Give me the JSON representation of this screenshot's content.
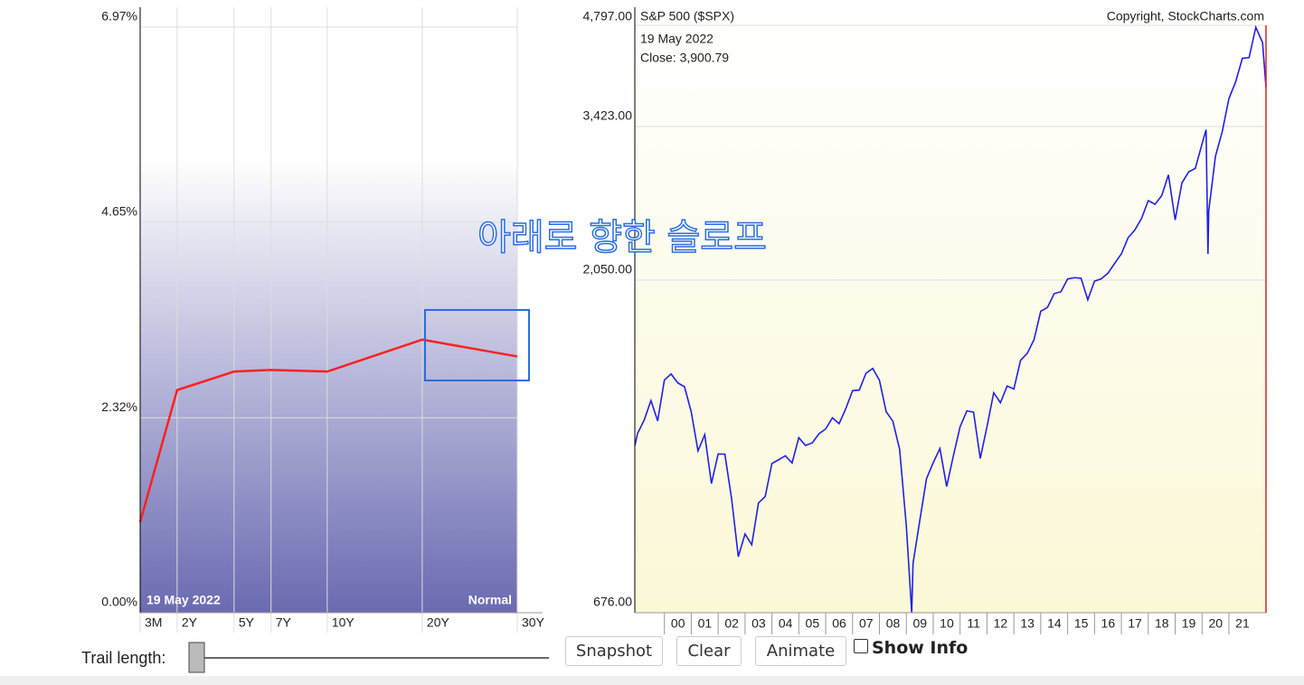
{
  "chart_data": [
    {
      "type": "line",
      "categories": [
        "3M",
        "2Y",
        "5Y",
        "7Y",
        "10Y",
        "20Y",
        "30Y"
      ],
      "values": [
        1.08,
        2.65,
        2.87,
        2.89,
        2.87,
        3.25,
        3.05
      ],
      "color": "#ff2020",
      "ylim": [
        0,
        6.97
      ],
      "yticks": [
        {
          "value": 0,
          "label": "0.00%"
        },
        {
          "value": 2.32,
          "label": "2.32%"
        },
        {
          "value": 4.65,
          "label": "4.65%"
        },
        {
          "value": 6.97,
          "label": "6.97%"
        }
      ],
      "grid": true,
      "date_label": "19  May 2022",
      "curve_label": "Normal"
    },
    {
      "type": "line",
      "title": "S&P 500 ($SPX)",
      "copyright": "Copyright, StockCharts.com",
      "date_label": "19  May 2022",
      "close_label": "Close: 3,900.79",
      "x": [
        1998.9,
        1999.0,
        1999.25,
        1999.5,
        1999.75,
        2000.0,
        2000.25,
        2000.5,
        2000.75,
        2001.0,
        2001.25,
        2001.5,
        2001.75,
        2002.0,
        2002.25,
        2002.5,
        2002.75,
        2003.0,
        2003.25,
        2003.5,
        2003.75,
        2004.0,
        2004.25,
        2004.5,
        2004.75,
        2005.0,
        2005.25,
        2005.5,
        2005.75,
        2006.0,
        2006.25,
        2006.5,
        2006.75,
        2007.0,
        2007.25,
        2007.5,
        2007.75,
        2008.0,
        2008.25,
        2008.5,
        2008.75,
        2009.0,
        2009.2,
        2009.25,
        2009.5,
        2009.75,
        2010.0,
        2010.25,
        2010.5,
        2010.75,
        2011.0,
        2011.25,
        2011.5,
        2011.75,
        2012.0,
        2012.25,
        2012.5,
        2012.75,
        2013.0,
        2013.25,
        2013.5,
        2013.75,
        2014.0,
        2014.25,
        2014.5,
        2014.75,
        2015.0,
        2015.25,
        2015.5,
        2015.75,
        2016.0,
        2016.25,
        2016.5,
        2016.75,
        2017.0,
        2017.25,
        2017.5,
        2017.75,
        2018.0,
        2018.25,
        2018.5,
        2018.75,
        2019.0,
        2019.25,
        2019.5,
        2019.75,
        2020.0,
        2020.15,
        2020.22,
        2020.25,
        2020.5,
        2020.75,
        2021.0,
        2021.25,
        2021.5,
        2021.75,
        2022.0,
        2022.25,
        2022.38
      ],
      "values": [
        1180,
        1229,
        1286,
        1372,
        1282,
        1469,
        1499,
        1455,
        1436,
        1320,
        1160,
        1224,
        1040,
        1148,
        1147,
        989,
        815,
        879,
        848,
        975,
        996,
        1112,
        1126,
        1141,
        1114,
        1212,
        1181,
        1191,
        1228,
        1248,
        1295,
        1270,
        1336,
        1418,
        1421,
        1503,
        1527,
        1468,
        1322,
        1280,
        1166,
        903,
        676,
        797,
        919,
        1057,
        1115,
        1169,
        1030,
        1141,
        1257,
        1325,
        1320,
        1131,
        1257,
        1408,
        1362,
        1440,
        1426,
        1569,
        1606,
        1681,
        1848,
        1872,
        1960,
        1972,
        2058,
        2067,
        2063,
        1920,
        2043,
        2059,
        2098,
        2168,
        2238,
        2362,
        2423,
        2519,
        2673,
        2640,
        2718,
        2913,
        2506,
        2834,
        2941,
        2976,
        3230,
        3386,
        2237,
        2584,
        3100,
        3363,
        3756,
        3972,
        4297,
        4307,
        4766,
        4530,
        3900.79
      ],
      "color": "#2020e8",
      "log_scale": true,
      "ylim": [
        676,
        4797
      ],
      "yticks": [
        {
          "value": 676,
          "label": "676.00"
        },
        {
          "value": 2050,
          "label": "2,050.00"
        },
        {
          "value": 3423,
          "label": "3,423.00"
        },
        {
          "value": 4797,
          "label": "4,797.00"
        }
      ],
      "xlim": [
        1998.9,
        2022.38
      ],
      "xticks": [
        {
          "value": 2000,
          "label": "00"
        },
        {
          "value": 2001,
          "label": "01"
        },
        {
          "value": 2002,
          "label": "02"
        },
        {
          "value": 2003,
          "label": "03"
        },
        {
          "value": 2004,
          "label": "04"
        },
        {
          "value": 2005,
          "label": "05"
        },
        {
          "value": 2006,
          "label": "06"
        },
        {
          "value": 2007,
          "label": "07"
        },
        {
          "value": 2008,
          "label": "08"
        },
        {
          "value": 2009,
          "label": "09"
        },
        {
          "value": 2010,
          "label": "10"
        },
        {
          "value": 2011,
          "label": "11"
        },
        {
          "value": 2012,
          "label": "12"
        },
        {
          "value": 2013,
          "label": "13"
        },
        {
          "value": 2014,
          "label": "14"
        },
        {
          "value": 2015,
          "label": "15"
        },
        {
          "value": 2016,
          "label": "16"
        },
        {
          "value": 2017,
          "label": "17"
        },
        {
          "value": 2018,
          "label": "18"
        },
        {
          "value": 2019,
          "label": "19"
        },
        {
          "value": 2020,
          "label": "20"
        },
        {
          "value": 2021,
          "label": "21"
        }
      ],
      "grid": true
    }
  ],
  "annotation": {
    "text": "아래로 향한 슬로프"
  },
  "controls": {
    "trail_label": "Trail length:",
    "buttons": [
      "Snapshot",
      "Clear",
      "Animate"
    ],
    "checkbox_label": "Show Info"
  }
}
